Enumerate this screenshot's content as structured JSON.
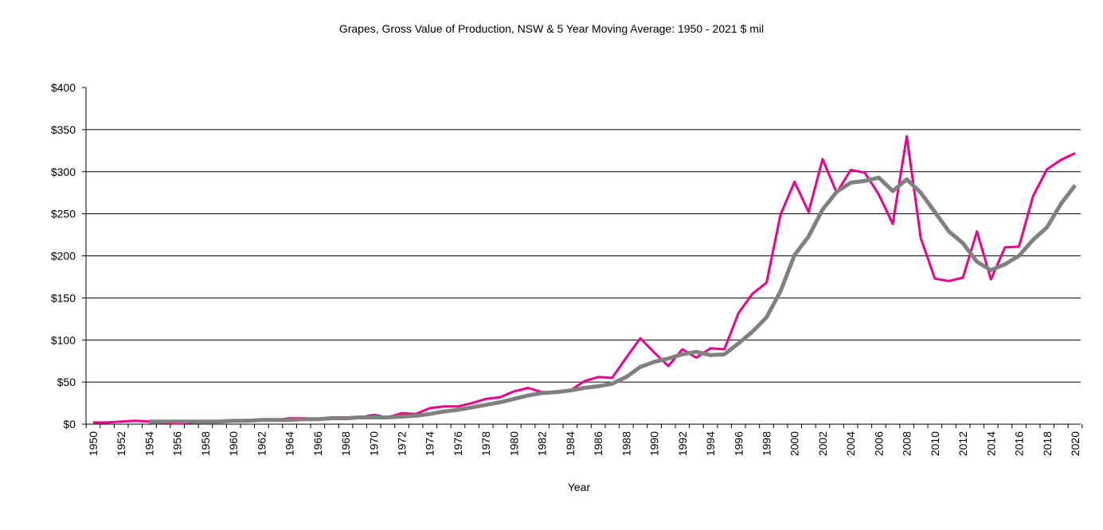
{
  "chart_data": {
    "type": "line",
    "title": "Grapes, Gross Value of Production, NSW & 5 Year Moving Average: 1950 - 2021 $ mil",
    "xlabel": "Year",
    "ylabel": "",
    "ylim": [
      0,
      400
    ],
    "xlim": [
      1950,
      2020
    ],
    "yticks": [
      0,
      50,
      100,
      150,
      200,
      250,
      300,
      350,
      400
    ],
    "ytick_labels": [
      "$0",
      "$50",
      "$100",
      "$150",
      "$200",
      "$250",
      "$300",
      "$350",
      "$400"
    ],
    "xtick_labels": [
      "1950",
      "1952",
      "1954",
      "1956",
      "1958",
      "1960",
      "1962",
      "1964",
      "1966",
      "1968",
      "1970",
      "1972",
      "1974",
      "1976",
      "1978",
      "1980",
      "1982",
      "1984",
      "1986",
      "1988",
      "1990",
      "1992",
      "1994",
      "1996",
      "1998",
      "2000",
      "2002",
      "2004",
      "2006",
      "2008",
      "2010",
      "2012",
      "2014",
      "2016",
      "2018",
      "2020"
    ],
    "grid": true,
    "legend": "none",
    "series": [
      {
        "name": "Gross Value of Production",
        "color": "#ec008c",
        "x_start": 1950,
        "values": [
          2,
          2,
          3,
          4,
          3,
          2,
          1,
          2,
          3,
          4,
          4,
          5,
          5,
          5,
          7,
          7,
          6,
          8,
          8,
          8,
          11,
          8,
          13,
          12,
          19,
          21,
          21,
          25,
          30,
          32,
          39,
          43,
          38,
          38,
          40,
          51,
          56,
          55,
          79,
          102,
          85,
          69,
          89,
          79,
          90,
          89,
          132,
          155,
          168,
          249,
          288,
          252,
          315,
          275,
          302,
          299,
          273,
          238,
          342,
          221,
          173,
          170,
          174,
          229,
          172,
          210,
          211,
          271,
          303,
          314,
          322
        ]
      },
      {
        "name": "5 Year Moving Average",
        "color": "#808080",
        "x_start": 1954,
        "values": [
          3,
          3,
          3,
          3,
          3,
          3,
          4,
          4,
          5,
          5,
          5,
          6,
          6,
          7,
          7,
          8,
          8,
          8,
          9,
          10,
          12,
          15,
          17,
          20,
          23,
          26,
          30,
          34,
          37,
          38,
          40,
          43,
          45,
          48,
          56,
          68,
          74,
          78,
          83,
          86,
          82,
          83,
          96,
          110,
          127,
          158,
          201,
          223,
          255,
          276,
          287,
          289,
          293,
          277,
          291,
          275,
          252,
          229,
          215,
          193,
          183,
          190,
          200,
          219,
          234,
          262,
          284
        ]
      }
    ]
  }
}
